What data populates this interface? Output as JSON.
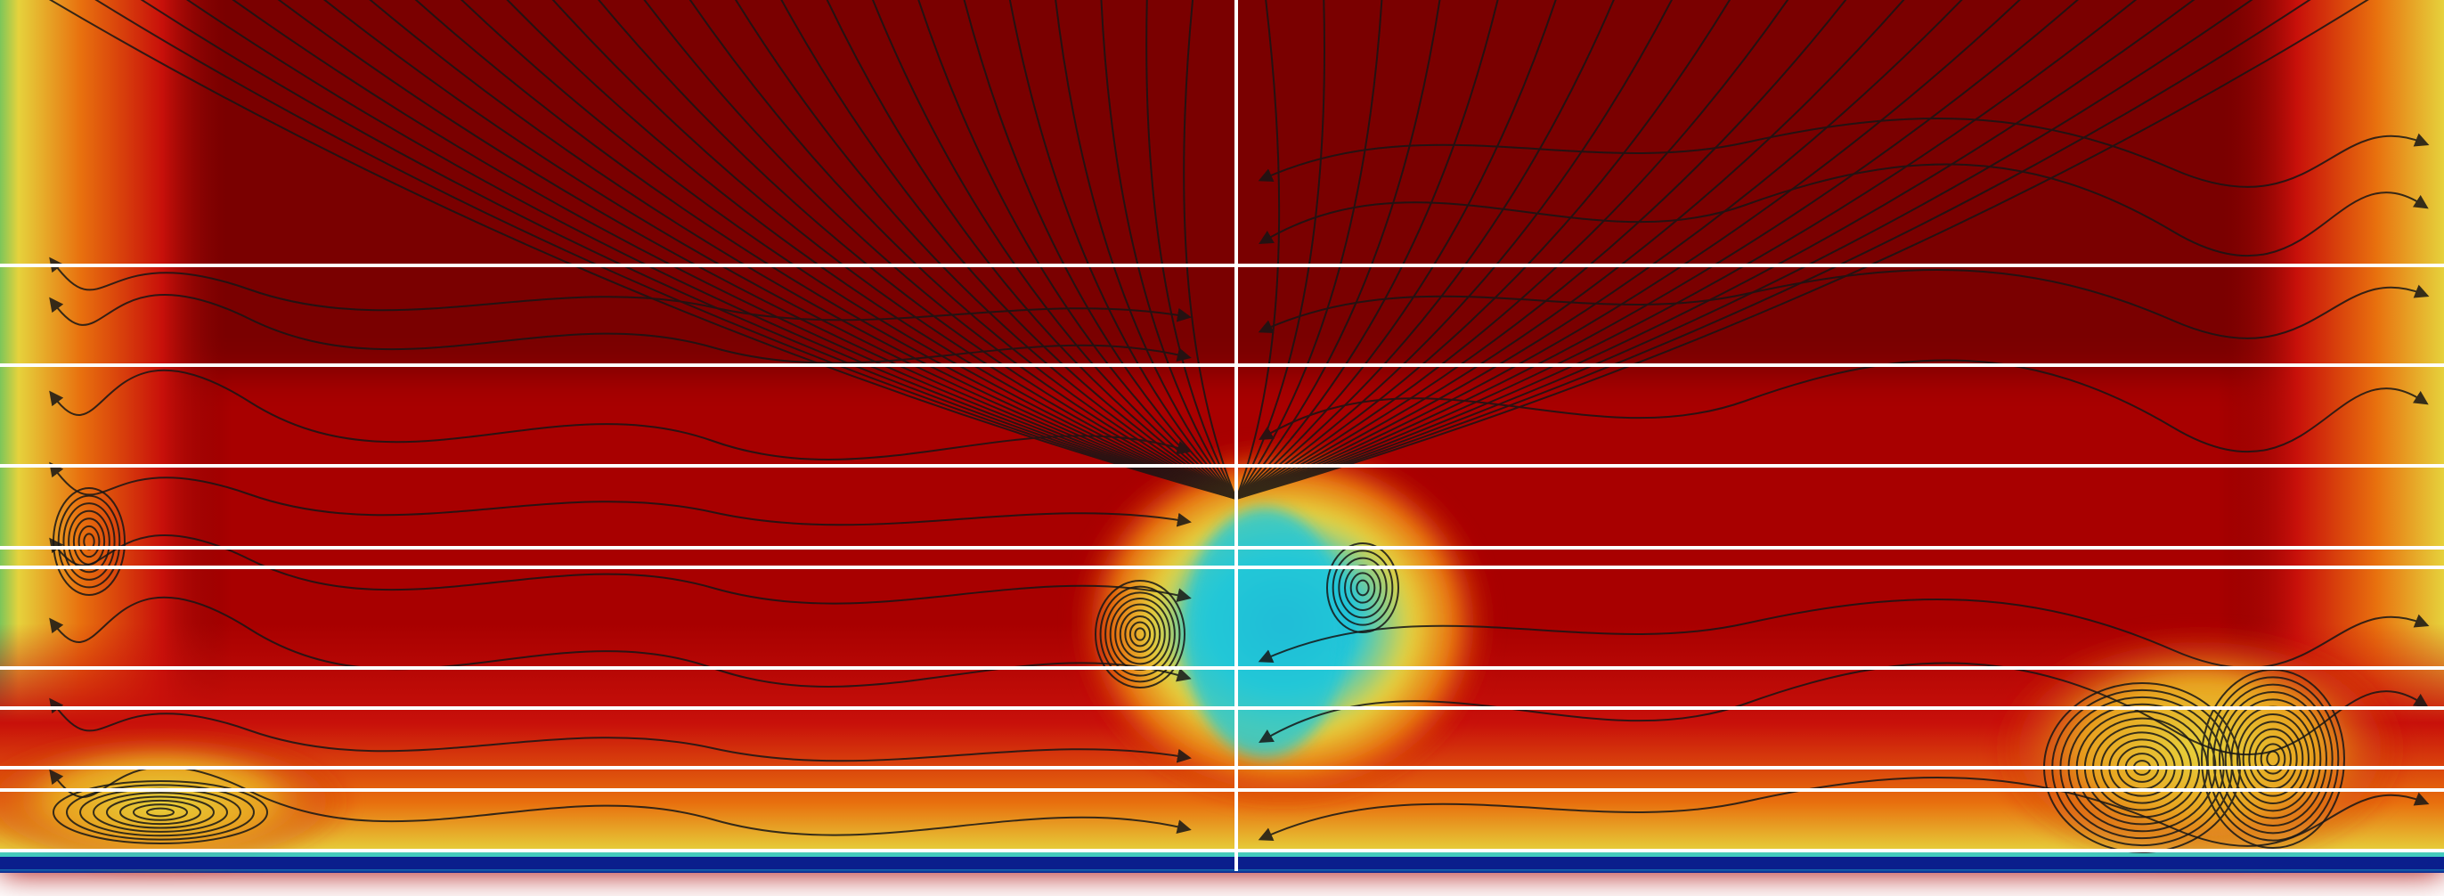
{
  "visualization": {
    "kind": "flow-field-contour-with-streamlines",
    "colormap": "jet",
    "colors": {
      "hot": "#7a0000",
      "red": "#c8100a",
      "orange": "#e8700e",
      "yellow": "#e6d23c",
      "green": "#7cc65a",
      "cyan": "#22c8d8",
      "blue": "#1a4fd6",
      "navy": "#0a1e8c",
      "streamline": "#161616",
      "grid_line": "#ffffff",
      "background": "#ffffff"
    },
    "vortices": [
      {
        "name": "left-wall-vortex"
      },
      {
        "name": "bottom-left-vortex"
      },
      {
        "name": "center-left-vortex"
      },
      {
        "name": "center-right-vortex"
      },
      {
        "name": "bottom-right-vortex-a"
      },
      {
        "name": "bottom-right-vortex-b"
      }
    ]
  }
}
